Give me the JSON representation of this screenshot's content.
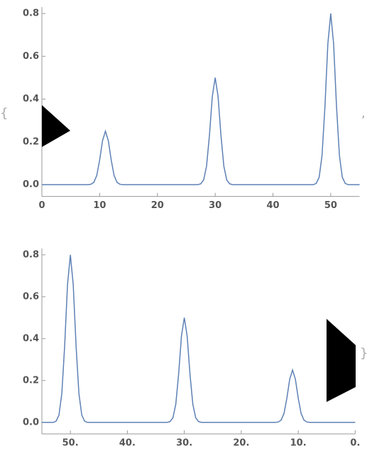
{
  "chart_data": [
    {
      "type": "line",
      "x": [
        0,
        8,
        8.5,
        9,
        9.5,
        10,
        10.5,
        11,
        11.5,
        12,
        12.5,
        13,
        13.5,
        14,
        27,
        27.5,
        28,
        28.5,
        29,
        29.5,
        30,
        30.5,
        31,
        31.5,
        32,
        32.5,
        33,
        47,
        47.5,
        48,
        48.5,
        49,
        49.5,
        50,
        50.5,
        51,
        51.5,
        52,
        52.5,
        53,
        55
      ],
      "series": [
        {
          "color": "#5e81b5",
          "values": [
            0,
            0,
            0.002,
            0.011,
            0.043,
            0.115,
            0.206,
            0.25,
            0.206,
            0.115,
            0.043,
            0.011,
            0.002,
            0,
            0,
            0.004,
            0.022,
            0.086,
            0.229,
            0.412,
            0.5,
            0.412,
            0.229,
            0.086,
            0.022,
            0.004,
            0,
            0,
            0.006,
            0.035,
            0.138,
            0.366,
            0.658,
            0.8,
            0.658,
            0.366,
            0.138,
            0.035,
            0.006,
            0,
            0
          ]
        }
      ],
      "xlim": [
        0,
        55
      ],
      "xticks": [
        0,
        10,
        20,
        30,
        40,
        50
      ],
      "ylim": [
        -0.055,
        0.83
      ],
      "yticks": [
        {
          "value": 0,
          "label": "0.0"
        },
        0.2,
        0.4,
        0.6,
        0.8
      ]
    },
    {
      "type": "line",
      "x": [
        0,
        8,
        8.5,
        9,
        9.5,
        10,
        10.5,
        11,
        11.5,
        12,
        12.5,
        13,
        13.5,
        14,
        27,
        27.5,
        28,
        28.5,
        29,
        29.5,
        30,
        30.5,
        31,
        31.5,
        32,
        32.5,
        33,
        47,
        47.5,
        48,
        48.5,
        49,
        49.5,
        50,
        50.5,
        51,
        51.5,
        52,
        52.5,
        53,
        55
      ],
      "series": [
        {
          "color": "#5e81b5",
          "values": [
            0,
            0,
            0.002,
            0.011,
            0.043,
            0.115,
            0.206,
            0.25,
            0.206,
            0.115,
            0.043,
            0.011,
            0.002,
            0,
            0,
            0.004,
            0.022,
            0.086,
            0.229,
            0.412,
            0.5,
            0.412,
            0.229,
            0.086,
            0.022,
            0.004,
            0,
            0,
            0.006,
            0.035,
            0.138,
            0.366,
            0.658,
            0.8,
            0.658,
            0.366,
            0.138,
            0.035,
            0.006,
            0,
            0
          ]
        }
      ],
      "xlim": [
        55,
        0
      ],
      "xticks": [
        {
          "value": 50,
          "label": "50."
        },
        {
          "value": 40,
          "label": "40."
        },
        {
          "value": 30,
          "label": "30."
        },
        {
          "value": 20,
          "label": "20."
        },
        {
          "value": 10,
          "label": "10."
        },
        {
          "value": 0,
          "label": "0."
        }
      ],
      "ylim": [
        -0.055,
        0.83
      ],
      "yticks": [
        {
          "value": 0,
          "label": "0.0"
        },
        0.2,
        0.4,
        0.6,
        0.8
      ]
    }
  ],
  "list_delimiters": {
    "open": "{",
    "separator": ",",
    "close": "}"
  }
}
